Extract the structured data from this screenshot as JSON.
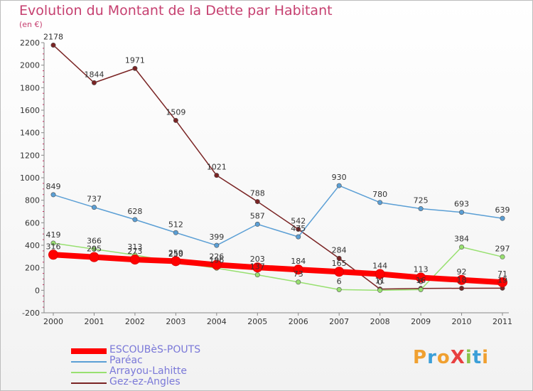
{
  "title": "Evolution du Montant de la Dette par Habitant",
  "unit": "(en €)",
  "logo": {
    "text": "ProXiti",
    "colors": [
      "#f0a030",
      "#3b9fd8",
      "#f0a030",
      "#e84040",
      "#8bc34a",
      "#3b9fd8",
      "#f0a030"
    ]
  },
  "chart_data": {
    "type": "line",
    "x": [
      "2000",
      "2001",
      "2002",
      "2003",
      "2004",
      "2005",
      "2006",
      "2007",
      "2008",
      "2009",
      "2010",
      "2011"
    ],
    "ylim": [
      -200,
      2200
    ],
    "yticks": [
      "-200",
      "0",
      "200",
      "400",
      "600",
      "800",
      "1000",
      "1200",
      "1400",
      "1600",
      "1800",
      "2000",
      "2200"
    ],
    "grid": false,
    "legend_position": "bottom-left",
    "series": [
      {
        "name": "ESCOUBèS-POUTS",
        "color": "#ff0000",
        "values": [
          316,
          295,
          273,
          259,
          226,
          203,
          184,
          165,
          144,
          113,
          92,
          71
        ],
        "labels": [
          "316",
          "295",
          "273",
          "259",
          "226",
          "203",
          "184",
          "165",
          "144",
          "113",
          "92",
          "71"
        ]
      },
      {
        "name": "Paréac",
        "color": "#5b9fd5",
        "values": [
          849,
          737,
          628,
          512,
          399,
          587,
          475,
          930,
          780,
          725,
          693,
          639
        ],
        "labels": [
          "849",
          "737",
          "628",
          "512",
          "399",
          "587",
          "475",
          "930",
          "780",
          "725",
          "693",
          "639"
        ]
      },
      {
        "name": "Arrayou-Lahitte",
        "color": "#98e070",
        "values": [
          419,
          366,
          313,
          250,
          196,
          137,
          73,
          6,
          0,
          6,
          384,
          297
        ],
        "labels": [
          "419",
          "366",
          "313",
          "250",
          "196",
          "137",
          "73",
          "6",
          "0",
          "6",
          "384",
          "297"
        ]
      },
      {
        "name": "Gez-ez-Angles",
        "color": "#7a2424",
        "values": [
          2178,
          1844,
          1971,
          1509,
          1021,
          788,
          542,
          284,
          11,
          16,
          18,
          19
        ],
        "labels": [
          "2178",
          "1844",
          "1971",
          "1509",
          "1021",
          "788",
          "542",
          "284",
          "11",
          "16",
          "18",
          "19"
        ]
      }
    ]
  }
}
